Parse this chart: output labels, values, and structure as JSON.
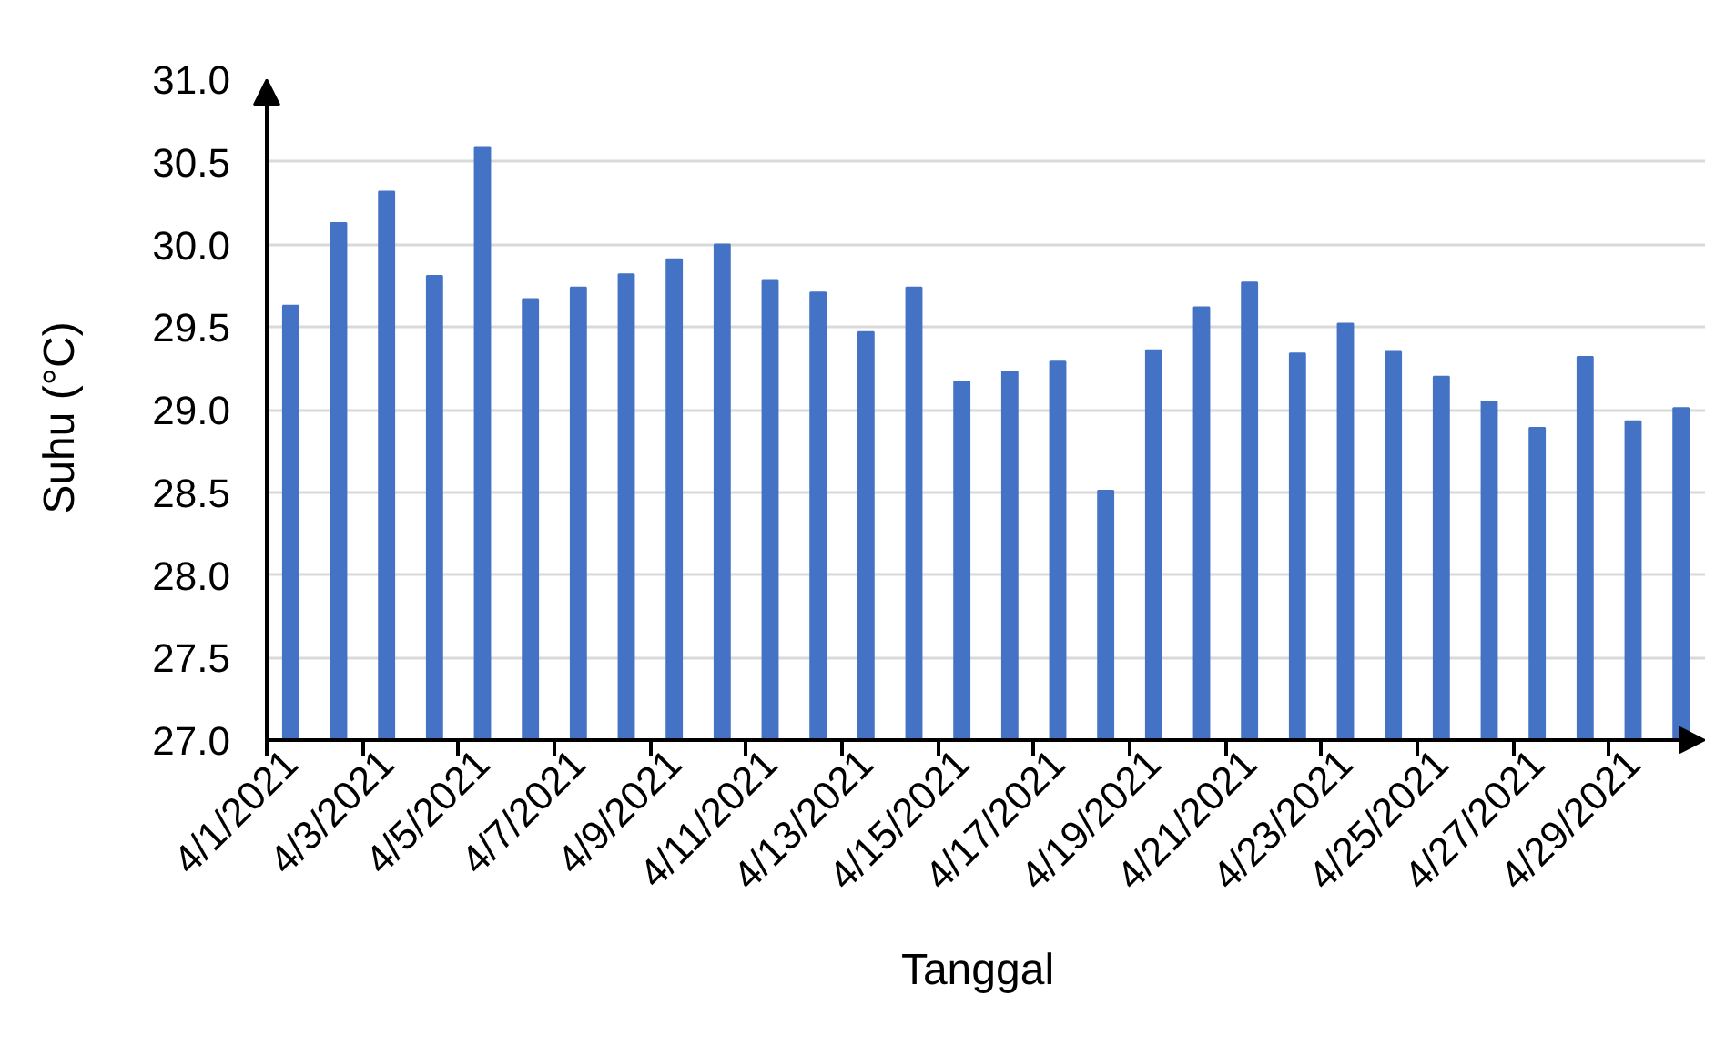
{
  "chart_data": {
    "type": "bar",
    "xlabel": "Tanggal",
    "ylabel": "Suhu (°C)",
    "categories": [
      "4/1/2021",
      null,
      "4/3/2021",
      null,
      "4/5/2021",
      null,
      "4/7/2021",
      null,
      "4/9/2021",
      null,
      "4/11/2021",
      null,
      "4/13/2021",
      null,
      "4/15/2021",
      null,
      "4/17/2021",
      null,
      "4/19/2021",
      null,
      "4/21/2021",
      null,
      "4/23/2021",
      null,
      "4/25/2021",
      null,
      "4/27/2021",
      null,
      "4/29/2021",
      null
    ],
    "values": [
      29.63,
      30.13,
      30.32,
      29.81,
      30.59,
      29.67,
      29.74,
      29.82,
      29.91,
      30.0,
      29.78,
      29.71,
      29.47,
      29.74,
      29.17,
      29.23,
      29.29,
      28.51,
      29.36,
      29.62,
      29.77,
      29.34,
      29.52,
      29.35,
      29.2,
      29.05,
      28.89,
      29.32,
      28.93,
      29.01
    ],
    "color": "#4472c4",
    "ylim": [
      27,
      31
    ],
    "yticks": [
      {
        "value": 27,
        "label": "27.0"
      },
      27.5,
      {
        "value": 28,
        "label": "28.0"
      },
      28.5,
      {
        "value": 29,
        "label": "29.0"
      },
      29.5,
      {
        "value": 30,
        "label": "30.0"
      },
      30.5,
      {
        "value": 31,
        "label": "31.0"
      }
    ],
    "grid": "y"
  }
}
